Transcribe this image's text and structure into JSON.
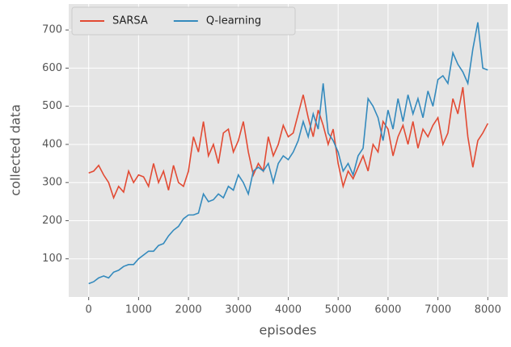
{
  "chart_data": {
    "type": "line",
    "xlabel": "episodes",
    "ylabel": "collected data",
    "x": [
      0,
      100,
      200,
      300,
      400,
      500,
      600,
      700,
      800,
      900,
      1000,
      1100,
      1200,
      1300,
      1400,
      1500,
      1600,
      1700,
      1800,
      1900,
      2000,
      2100,
      2200,
      2300,
      2400,
      2500,
      2600,
      2700,
      2800,
      2900,
      3000,
      3100,
      3200,
      3300,
      3400,
      3500,
      3600,
      3700,
      3800,
      3900,
      4000,
      4100,
      4200,
      4300,
      4400,
      4500,
      4600,
      4700,
      4800,
      4900,
      5000,
      5100,
      5200,
      5300,
      5400,
      5500,
      5600,
      5700,
      5800,
      5900,
      6000,
      6100,
      6200,
      6300,
      6400,
      6500,
      6600,
      6700,
      6800,
      6900,
      7000,
      7100,
      7200,
      7300,
      7400,
      7500,
      7600,
      7700,
      7800,
      7900,
      8000
    ],
    "series": [
      {
        "name": "SARSA",
        "color": "#E24A33",
        "values": [
          325,
          330,
          345,
          320,
          300,
          260,
          290,
          275,
          330,
          300,
          320,
          315,
          290,
          350,
          300,
          330,
          280,
          345,
          300,
          290,
          330,
          420,
          380,
          460,
          370,
          400,
          350,
          430,
          440,
          380,
          410,
          460,
          380,
          320,
          350,
          330,
          420,
          370,
          400,
          450,
          420,
          430,
          480,
          530,
          470,
          420,
          490,
          450,
          400,
          440,
          350,
          290,
          330,
          310,
          340,
          370,
          330,
          400,
          380,
          460,
          440,
          370,
          420,
          450,
          400,
          460,
          390,
          440,
          420,
          450,
          470,
          400,
          430,
          520,
          480,
          550,
          420,
          340,
          410,
          430,
          455
        ]
      },
      {
        "name": "Q-learning",
        "color": "#348ABD",
        "values": [
          35,
          40,
          50,
          55,
          50,
          65,
          70,
          80,
          85,
          85,
          100,
          110,
          120,
          120,
          135,
          140,
          160,
          175,
          185,
          205,
          215,
          215,
          220,
          270,
          250,
          255,
          270,
          260,
          290,
          280,
          320,
          300,
          270,
          330,
          340,
          330,
          350,
          300,
          350,
          370,
          360,
          380,
          410,
          460,
          420,
          480,
          440,
          560,
          430,
          410,
          380,
          330,
          350,
          320,
          370,
          390,
          520,
          500,
          470,
          410,
          490,
          440,
          520,
          460,
          530,
          480,
          520,
          470,
          540,
          500,
          570,
          580,
          560,
          640,
          610,
          590,
          560,
          650,
          720,
          600,
          595
        ]
      }
    ],
    "xlim": [
      -400,
      8400
    ],
    "ylim": [
      0,
      768
    ],
    "xticks": [
      0,
      1000,
      2000,
      3000,
      4000,
      5000,
      6000,
      7000,
      8000
    ],
    "yticks": [
      100,
      200,
      300,
      400,
      500,
      600,
      700
    ],
    "grid": true,
    "legend": "upper-left"
  }
}
